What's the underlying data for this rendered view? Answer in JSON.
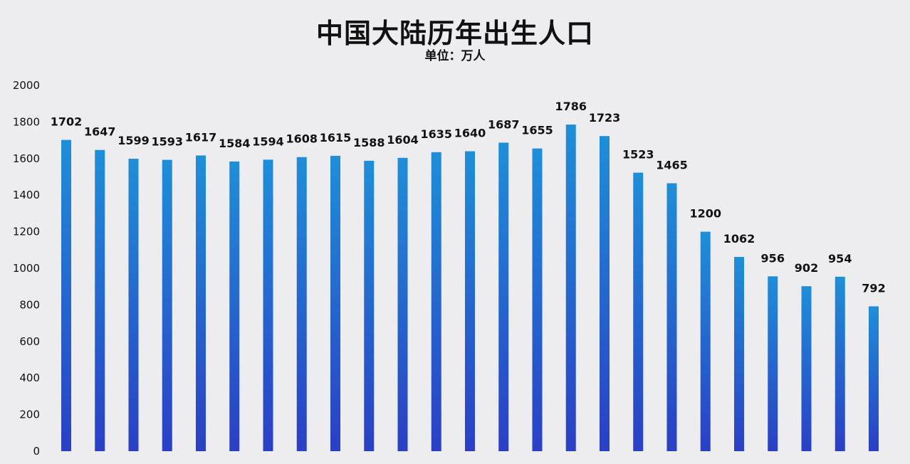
{
  "chart_data": {
    "type": "bar",
    "title": "中国大陆历年出生人口",
    "subtitle": "单位：万人",
    "xlabel": "",
    "ylabel": "",
    "ylim": [
      0,
      2000
    ],
    "yticks": [
      0,
      200,
      400,
      600,
      800,
      1000,
      1200,
      1400,
      1600,
      1800,
      2000
    ],
    "grid": false,
    "legend": "none",
    "values": [
      1702,
      1647,
      1599,
      1593,
      1617,
      1584,
      1594,
      1608,
      1615,
      1588,
      1604,
      1635,
      1640,
      1687,
      1655,
      1786,
      1723,
      1523,
      1465,
      1200,
      1062,
      956,
      902,
      954,
      792
    ],
    "bar_color_top": "#1e8fd8",
    "bar_color_bottom": "#2a3fc6"
  }
}
